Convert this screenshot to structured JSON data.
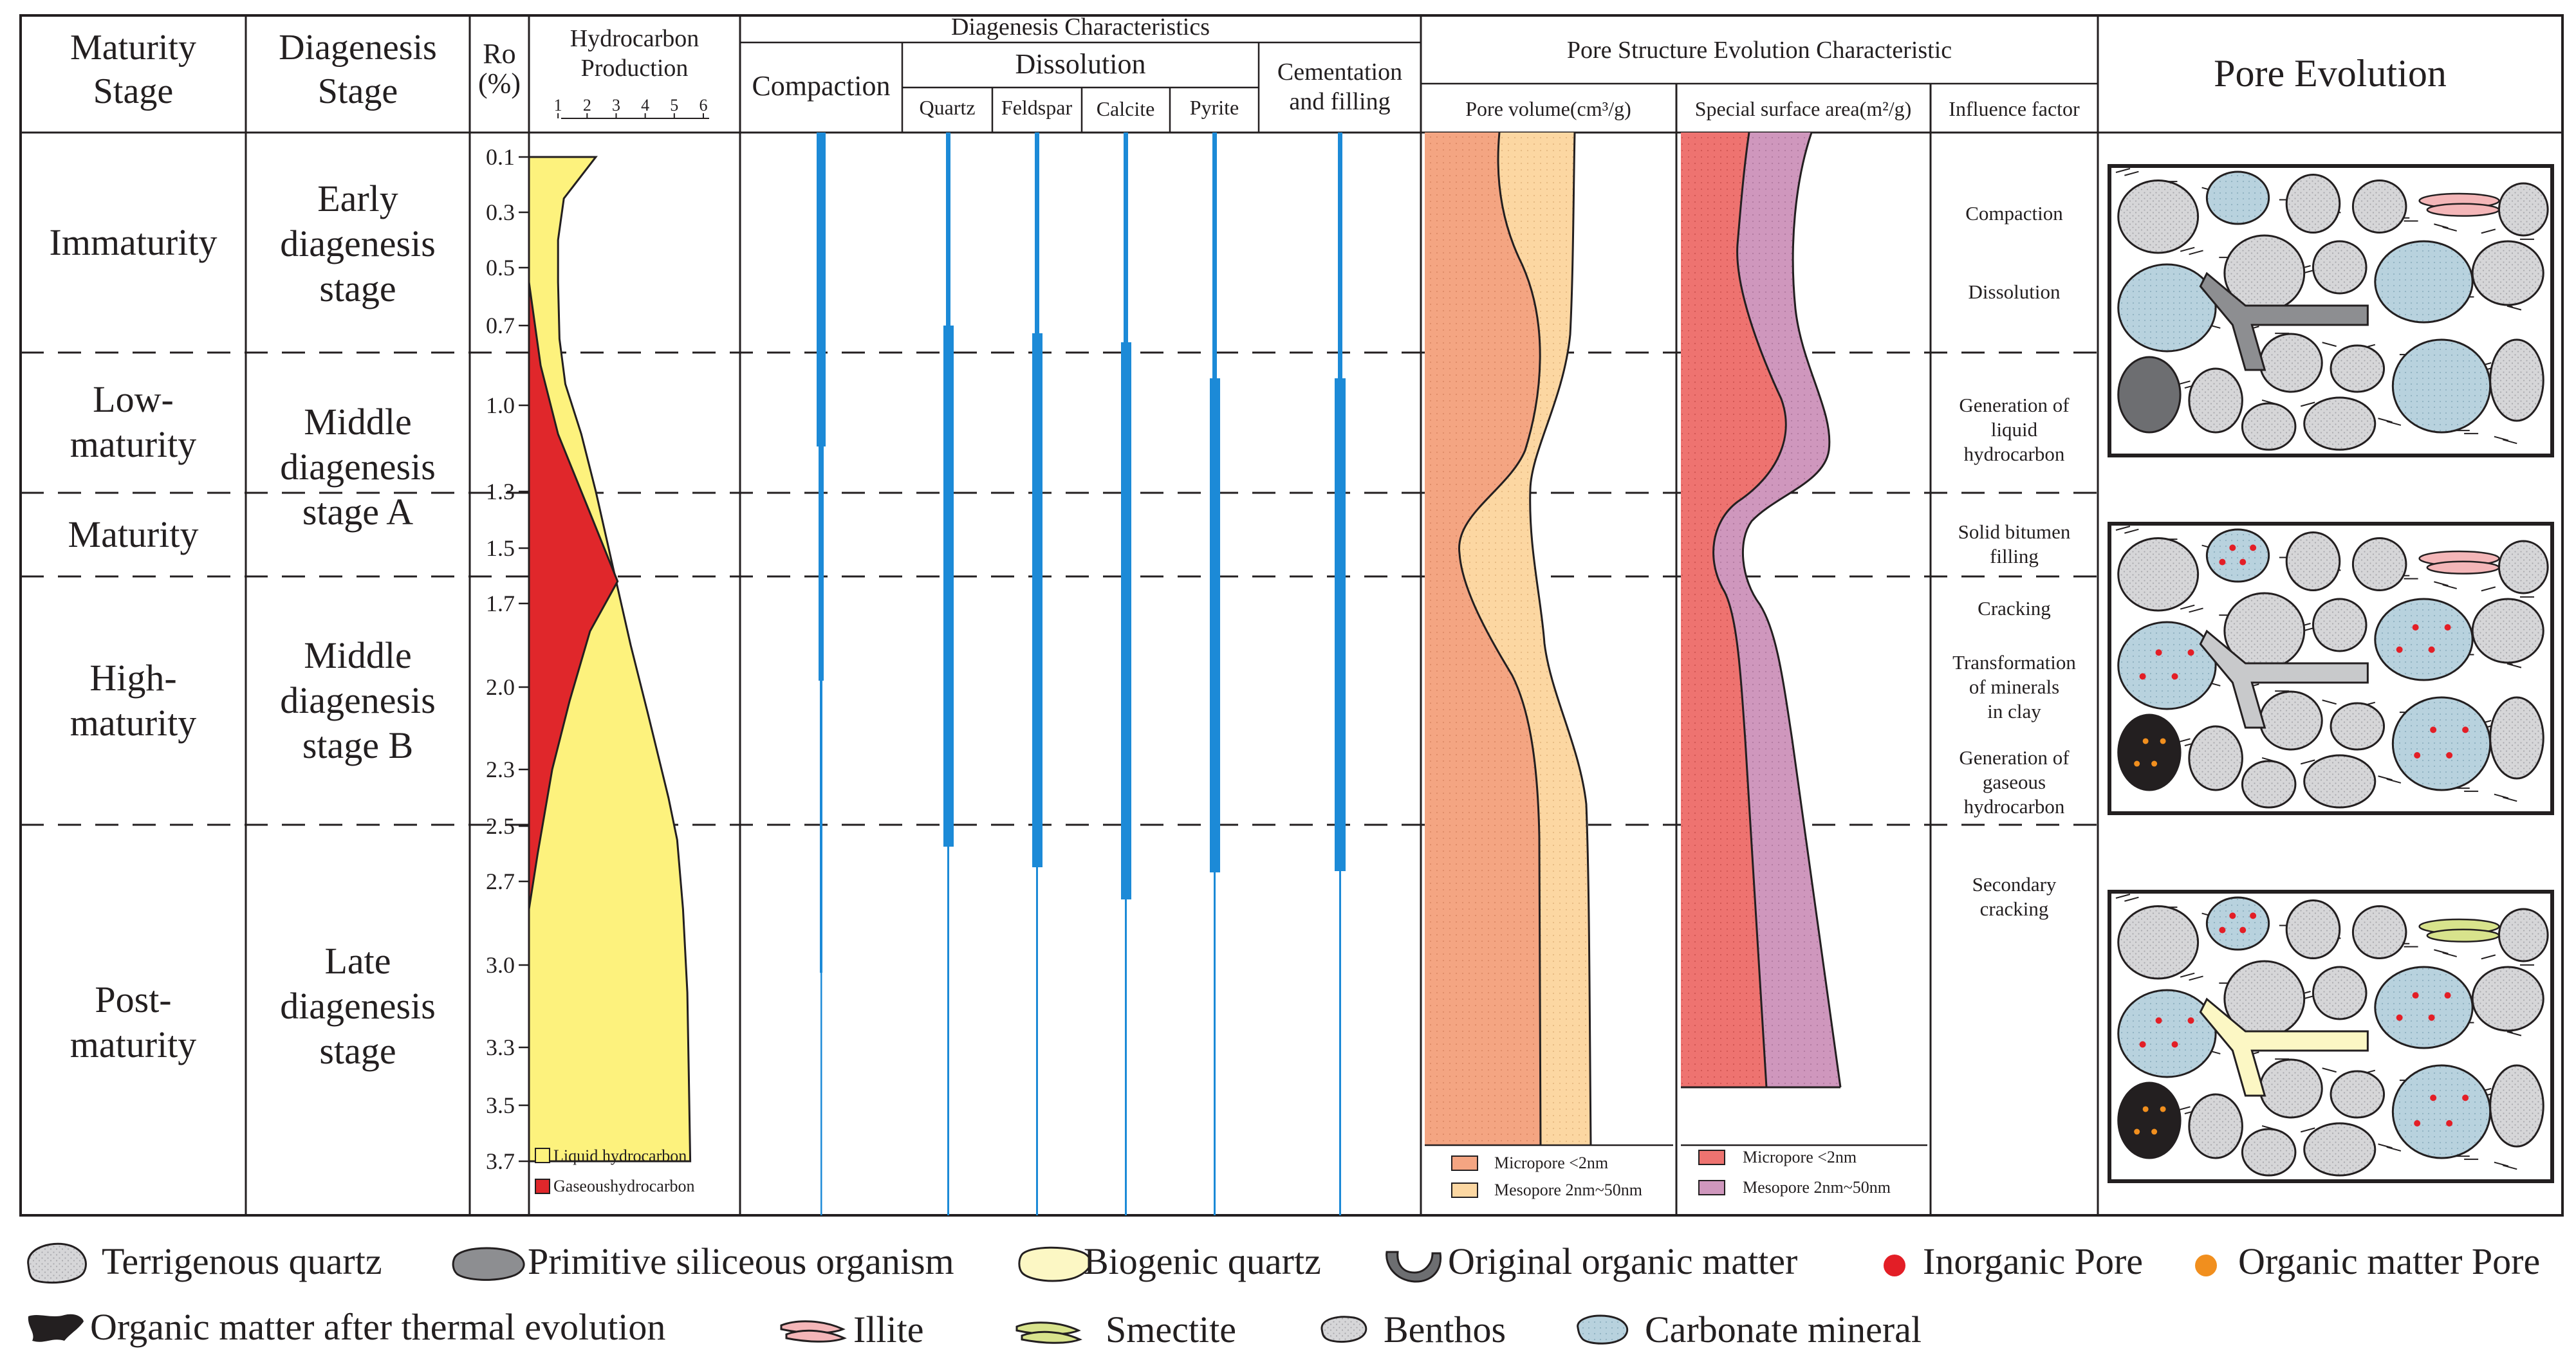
{
  "headers": {
    "maturity_stage": [
      "Maturity",
      "Stage"
    ],
    "diagenesis_stage": [
      "Diagenesis",
      "Stage"
    ],
    "ro": [
      "Ro",
      "(%)"
    ],
    "hydrocarbon_production": [
      "Hydrocarbon",
      "Production"
    ],
    "production_scale": [
      "1",
      "2",
      "3",
      "4",
      "5",
      "6"
    ],
    "diagenesis_characteristics": "Diagenesis Characteristics",
    "compaction": "Compaction",
    "dissolution": "Dissolution",
    "quartz": "Quartz",
    "feldspar": "Feldspar",
    "calcite": "Calcite",
    "pyrite": "Pyrite",
    "cementation": [
      "Cementation",
      "and filling"
    ],
    "pore_structure": "Pore Structure Evolution Characteristic",
    "pore_volume": "Pore volume(cm³/g)",
    "surface_area": "Special surface area(m²/g)",
    "influence_factor": "Influence factor",
    "pore_evolution": "Pore Evolution"
  },
  "maturity_stages": [
    {
      "lines": [
        "Immaturity"
      ]
    },
    {
      "lines": [
        "Low-",
        "maturity"
      ]
    },
    {
      "lines": [
        "Maturity"
      ]
    },
    {
      "lines": [
        "High-",
        "maturity"
      ]
    },
    {
      "lines": [
        "Post-",
        "maturity"
      ]
    }
  ],
  "diagenesis_stages": [
    {
      "lines": [
        "Early",
        "diagenesis",
        "stage"
      ]
    },
    {
      "lines": [
        "Middle",
        "diagenesis",
        "stage A"
      ]
    },
    {
      "lines": [
        "Middle",
        "diagenesis",
        "stage B"
      ]
    },
    {
      "lines": [
        "Late",
        "diagenesis",
        "stage"
      ]
    }
  ],
  "ro_ticks": [
    "0.1",
    "0.3",
    "0.5",
    "0.7",
    "1.0",
    "1.3",
    "1.5",
    "1.7",
    "2.0",
    "2.3",
    "2.5",
    "2.7",
    "3.0",
    "3.3",
    "3.5",
    "3.7"
  ],
  "influence_factors": [
    {
      "lines": [
        "Compaction"
      ]
    },
    {
      "lines": [
        "Dissolution"
      ]
    },
    {
      "lines": [
        "Generation of",
        "liquid",
        "hydrocarbon"
      ]
    },
    {
      "lines": [
        "Solid bitumen",
        "filling"
      ]
    },
    {
      "lines": [
        "Cracking"
      ]
    },
    {
      "lines": [
        "Transformation",
        "of minerals",
        "in clay"
      ]
    },
    {
      "lines": [
        "Generation of",
        "gaseous",
        "hydrocarbon"
      ]
    },
    {
      "lines": [
        "Secondary",
        "cracking"
      ]
    }
  ],
  "chart_legends": {
    "liquid": "Liquid hydrocarbon",
    "gas": "Gaseoushydrocarbon",
    "pv_micro": "Micropore  <2nm",
    "pv_meso": "Mesopore  2nm~50nm",
    "sa_micro": "Micropore  <2nm",
    "sa_meso": "Mesopore  2nm~50nm"
  },
  "bottom_legend": [
    "Terrigenous quartz",
    "Primitive siliceous organism",
    "Biogenic quartz",
    "Original organic matter",
    "Inorganic Pore",
    "Organic matter Pore",
    "Organic matter after thermal evolution",
    "Illite",
    "Smectite",
    "Benthos",
    "Carbonate mineral"
  ],
  "colors": {
    "liquid": "#fdf27d",
    "gas": "#e0272b",
    "diagenesis_bar": "#1c8ad7",
    "pv_micro": "#f4a582",
    "pv_meso": "#fcd7a2",
    "sa_micro": "#ee7370",
    "sa_meso": "#cf97bd",
    "grain": "#d6d6d8",
    "carbonate": "#b8d2de",
    "inorganic_pore": "#e31e26",
    "organic_pore": "#f18f1e"
  },
  "chart_data": {
    "type": "area",
    "title": "Hydrocarbon Production",
    "ylabel": "Ro (%)",
    "xlabel": "",
    "ylim": [
      0.1,
      3.7
    ],
    "xlim": [
      0,
      6
    ],
    "series": [
      {
        "name": "Liquid hydrocarbon",
        "points": [
          [
            2.3,
            0.1
          ],
          [
            1.2,
            0.25
          ],
          [
            1.0,
            0.4
          ],
          [
            1.0,
            0.55
          ],
          [
            1.05,
            0.75
          ],
          [
            1.25,
            0.92
          ],
          [
            1.8,
            1.1
          ],
          [
            2.3,
            1.3
          ],
          [
            3.0,
            1.62
          ],
          [
            3.5,
            1.85
          ],
          [
            4.1,
            2.1
          ],
          [
            4.8,
            2.4
          ],
          [
            5.1,
            2.55
          ],
          [
            5.3,
            2.8
          ],
          [
            5.45,
            3.1
          ],
          [
            5.5,
            3.4
          ],
          [
            5.55,
            3.7
          ]
        ]
      },
      {
        "name": "Gaseoushydrocarbon",
        "points": [
          [
            0,
            0.55
          ],
          [
            0.4,
            0.85
          ],
          [
            1.0,
            1.1
          ],
          [
            2.0,
            1.35
          ],
          [
            3.05,
            1.62
          ],
          [
            2.1,
            1.8
          ],
          [
            1.4,
            2.05
          ],
          [
            0.8,
            2.3
          ],
          [
            0.3,
            2.6
          ],
          [
            0,
            2.8
          ]
        ]
      }
    ]
  }
}
